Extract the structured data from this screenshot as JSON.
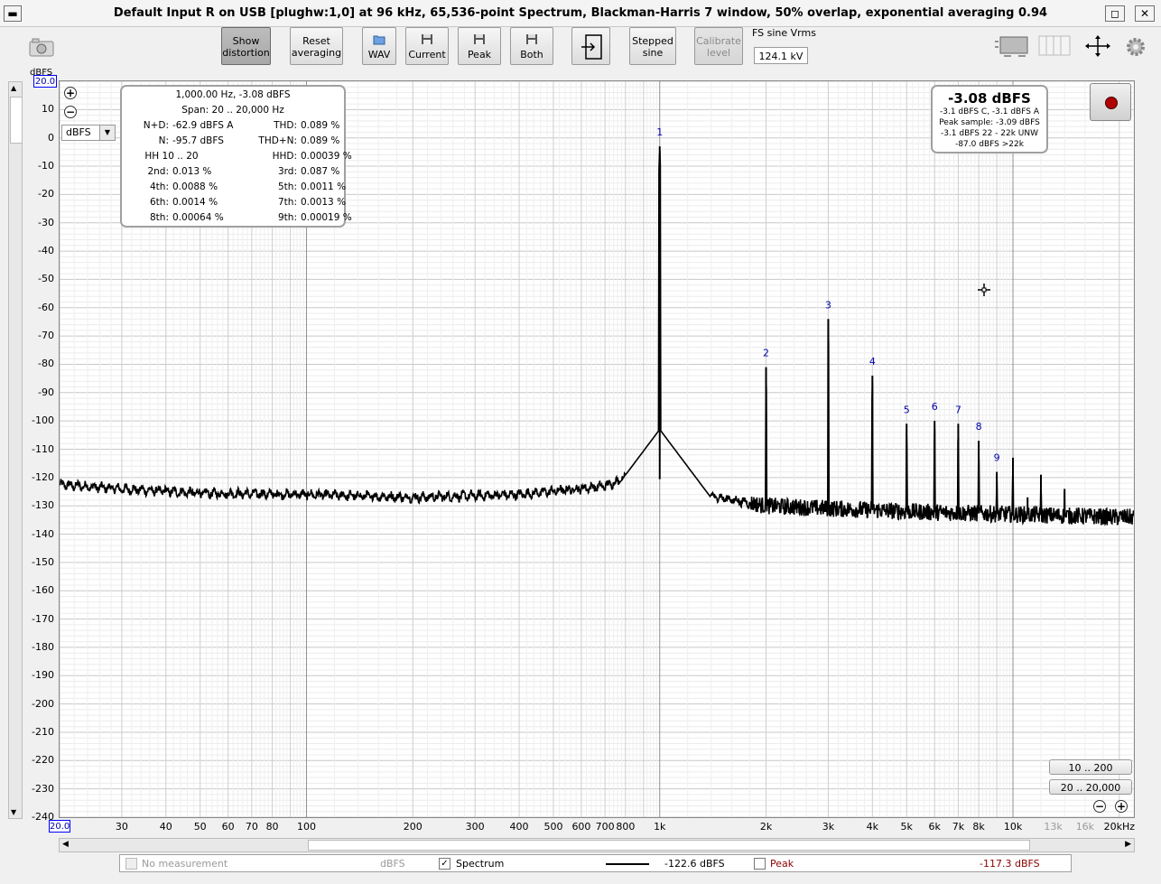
{
  "window": {
    "title": "Default Input R on USB [plughw:1,0] at 96 kHz, 65,536-point Spectrum, Blackman-Harris 7 window, 50% overlap, exponential averaging 0.94",
    "restore_glyph": "◻",
    "close_glyph": "✕"
  },
  "toolbar": {
    "show_distortion": [
      "Show",
      "distortion"
    ],
    "reset_averaging": [
      "Reset",
      "averaging"
    ],
    "wav": "WAV",
    "current": "Current",
    "peak": "Peak",
    "both": "Both",
    "stepped_sine": [
      "Stepped",
      "sine"
    ],
    "calibrate_level": [
      "Calibrate",
      "level"
    ],
    "fs_sine_label": "FS sine Vrms",
    "fs_sine_value": "124.1 kV"
  },
  "distortion_panel": {
    "header": "1,000.00 Hz, -3.08 dBFS",
    "span": "Span: 20 .. 20,000 Hz",
    "rows": [
      [
        "N+D:",
        "-62.9 dBFS A",
        "THD:",
        "0.089 %"
      ],
      [
        "N:",
        "-95.7 dBFS",
        "THD+N:",
        "0.089 %"
      ],
      [
        "HH 10 .. 20",
        "",
        "HHD:",
        "0.00039 %"
      ],
      [
        "2nd:",
        "0.013 %",
        "3rd:",
        "0.087 %"
      ],
      [
        "4th:",
        "0.0088 %",
        "5th:",
        "0.0011 %"
      ],
      [
        "6th:",
        "0.0014 %",
        "7th:",
        "0.0013 %"
      ],
      [
        "8th:",
        "0.00064 %",
        "9th:",
        "0.00019 %"
      ]
    ]
  },
  "level_panel": {
    "big": "-3.08 dBFS",
    "lines": [
      "-3.1 dBFS C, -3.1 dBFS A",
      "Peak sample: -3.09 dBFS",
      "-3.1 dBFS 22 - 22k UNW",
      "-87.0 dBFS >22k"
    ]
  },
  "axes": {
    "y_unit": "dBFS",
    "y_top_box": "20.0",
    "x_left_box": "20.0",
    "unit_select": "dBFS",
    "y_tick_labels": [
      "10",
      "0",
      "-10",
      "-20",
      "-30",
      "-40",
      "-50",
      "-60",
      "-70",
      "-80",
      "-90",
      "-100",
      "-110",
      "-120",
      "-130",
      "-140",
      "-150",
      "-160",
      "-170",
      "-180",
      "-190",
      "-200",
      "-210",
      "-220",
      "-230",
      "-240"
    ],
    "x_tick_labels": [
      "30",
      "40",
      "50",
      "60",
      "70",
      "80",
      "100",
      "200",
      "300",
      "400",
      "500",
      "600",
      "700",
      "800",
      "1k",
      "2k",
      "3k",
      "4k",
      "5k",
      "6k",
      "7k",
      "8k",
      "10k",
      "13k",
      "16k",
      "20kHz"
    ],
    "x_tick_dim": [
      "13k",
      "16k"
    ]
  },
  "range_buttons": [
    "10 .. 200",
    "20 .. 20,000"
  ],
  "legend": {
    "no_measurement": "No measurement",
    "unit": "dBFS",
    "spectrum_check": "✓",
    "spectrum": "Spectrum",
    "spectrum_value": "-122.6 dBFS",
    "peak": "Peak",
    "peak_value": "-117.3 dBFS"
  },
  "colors": {
    "accent_blue": "#0000aa",
    "trace": "#000000",
    "peak_legend": "#8b0000",
    "record_red": "#b00000"
  },
  "chart_data": {
    "type": "line",
    "title": "",
    "xlabel": "",
    "ylabel": "dBFS",
    "x_scale": "log",
    "xlim": [
      20,
      22000
    ],
    "ylim": [
      -240,
      20
    ],
    "grid": true,
    "fundamental": {
      "freq_hz": 1000,
      "level_dbfs": -3.08
    },
    "harmonics": [
      {
        "label": "1",
        "freq_hz": 1000,
        "level_dbfs": -3
      },
      {
        "label": "2",
        "freq_hz": 2000,
        "level_dbfs": -81
      },
      {
        "label": "3",
        "freq_hz": 3000,
        "level_dbfs": -64
      },
      {
        "label": "4",
        "freq_hz": 4000,
        "level_dbfs": -84
      },
      {
        "label": "5",
        "freq_hz": 5000,
        "level_dbfs": -101
      },
      {
        "label": "6",
        "freq_hz": 6000,
        "level_dbfs": -100
      },
      {
        "label": "7",
        "freq_hz": 7000,
        "level_dbfs": -101
      },
      {
        "label": "8",
        "freq_hz": 8000,
        "level_dbfs": -107
      },
      {
        "label": "9",
        "freq_hz": 9000,
        "level_dbfs": -118
      }
    ],
    "extra_spurs": [
      {
        "freq_hz": 10000,
        "level_dbfs": -113
      },
      {
        "freq_hz": 12000,
        "level_dbfs": -119
      },
      {
        "freq_hz": 14000,
        "level_dbfs": -124
      },
      {
        "freq_hz": 11000,
        "level_dbfs": -127
      }
    ],
    "noise_floor": [
      {
        "freq_hz": 20,
        "level_dbfs": -122.5
      },
      {
        "freq_hz": 30,
        "level_dbfs": -124
      },
      {
        "freq_hz": 50,
        "level_dbfs": -125.5
      },
      {
        "freq_hz": 100,
        "level_dbfs": -126
      },
      {
        "freq_hz": 200,
        "level_dbfs": -127
      },
      {
        "freq_hz": 400,
        "level_dbfs": -126
      },
      {
        "freq_hz": 700,
        "level_dbfs": -123
      },
      {
        "freq_hz": 900,
        "level_dbfs": -118
      },
      {
        "freq_hz": 1200,
        "level_dbfs": -125
      },
      {
        "freq_hz": 2000,
        "level_dbfs": -130
      },
      {
        "freq_hz": 5000,
        "level_dbfs": -132
      },
      {
        "freq_hz": 10000,
        "level_dbfs": -133
      },
      {
        "freq_hz": 20000,
        "level_dbfs": -134
      }
    ]
  }
}
